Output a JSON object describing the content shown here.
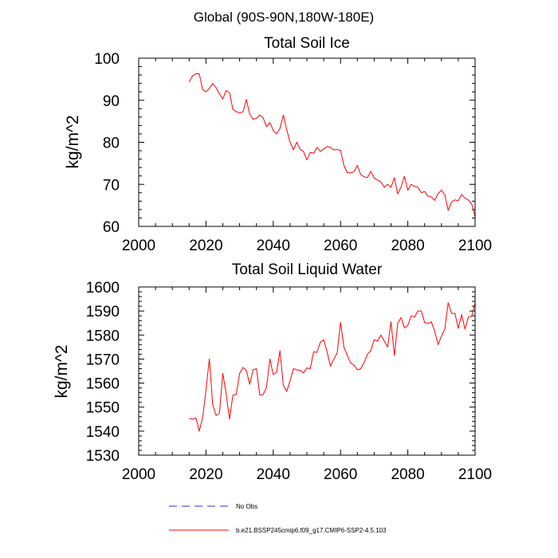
{
  "figure": {
    "supertitle": "Global (90S-90N,180W-180E)"
  },
  "legend": {
    "entries": [
      {
        "label": "No Obs",
        "color": "#2b2bd6",
        "style": "dashed"
      },
      {
        "label": "b.e21.BSSP245cmip6.f09_g17.CMIP6-SSP2-4.5.103",
        "color": "#ff0000",
        "style": "solid"
      }
    ]
  },
  "chart_data": [
    {
      "type": "line",
      "title": "Total Soil Ice",
      "xlabel": "",
      "ylabel": "kg/m^2",
      "xlim": [
        2000,
        2100
      ],
      "ylim": [
        60,
        100
      ],
      "xticks": [
        2000,
        2020,
        2040,
        2060,
        2080,
        2100
      ],
      "yticks": [
        60,
        70,
        80,
        90,
        100
      ],
      "series": [
        {
          "name": "b.e21.BSSP245cmip6.f09_g17.CMIP6-SSP2-4.5.103",
          "color": "#ff0000",
          "x": [
            2015,
            2016,
            2017,
            2018,
            2019,
            2020,
            2021,
            2022,
            2023,
            2024,
            2025,
            2026,
            2027,
            2028,
            2029,
            2030,
            2031,
            2032,
            2033,
            2034,
            2035,
            2036,
            2037,
            2038,
            2039,
            2040,
            2041,
            2042,
            2043,
            2044,
            2045,
            2046,
            2047,
            2048,
            2049,
            2050,
            2051,
            2052,
            2053,
            2054,
            2055,
            2056,
            2057,
            2058,
            2059,
            2060,
            2061,
            2062,
            2063,
            2064,
            2065,
            2066,
            2067,
            2068,
            2069,
            2070,
            2071,
            2072,
            2073,
            2074,
            2075,
            2076,
            2077,
            2078,
            2079,
            2080,
            2081,
            2082,
            2083,
            2084,
            2085,
            2086,
            2087,
            2088,
            2089,
            2090,
            2091,
            2092,
            2093,
            2094,
            2095,
            2096,
            2097,
            2098,
            2099,
            2100
          ],
          "y": [
            94.3,
            95.8,
            96.3,
            96.3,
            92.5,
            92.0,
            92.8,
            94.0,
            93.0,
            91.5,
            90.3,
            92.3,
            91.8,
            87.8,
            87.3,
            87.0,
            87.2,
            90.2,
            86.7,
            85.5,
            85.7,
            86.5,
            85.8,
            83.7,
            84.7,
            82.8,
            82.0,
            83.3,
            86.5,
            83.0,
            80.0,
            78.2,
            80.0,
            78.3,
            77.8,
            75.8,
            77.6,
            77.4,
            78.8,
            77.8,
            78.4,
            79.0,
            78.8,
            78.2,
            78.3,
            78.1,
            74.5,
            72.8,
            72.7,
            73.0,
            74.5,
            72.3,
            71.8,
            71.6,
            73.1,
            71.5,
            71.0,
            70.6,
            69.3,
            70.0,
            69.3,
            71.6,
            67.7,
            69.4,
            71.9,
            68.6,
            70.0,
            69.5,
            69.3,
            68.0,
            68.3,
            67.2,
            67.0,
            66.2,
            67.8,
            68.6,
            67.5,
            63.8,
            65.8,
            66.3,
            66.1,
            67.6,
            66.7,
            66.3,
            65.3,
            62.3
          ]
        }
      ]
    },
    {
      "type": "line",
      "title": "Total Soil Liquid Water",
      "xlabel": "",
      "ylabel": "kg/m^2",
      "xlim": [
        2000,
        2100
      ],
      "ylim": [
        1530,
        1600
      ],
      "xticks": [
        2000,
        2020,
        2040,
        2060,
        2080,
        2100
      ],
      "yticks": [
        1530,
        1540,
        1550,
        1560,
        1570,
        1580,
        1590,
        1600
      ],
      "series": [
        {
          "name": "b.e21.BSSP245cmip6.f09_g17.CMIP6-SSP2-4.5.103",
          "color": "#ff0000",
          "x": [
            2015,
            2016,
            2017,
            2018,
            2019,
            2020,
            2021,
            2022,
            2023,
            2024,
            2025,
            2026,
            2027,
            2028,
            2029,
            2030,
            2031,
            2032,
            2033,
            2034,
            2035,
            2036,
            2037,
            2038,
            2039,
            2040,
            2041,
            2042,
            2043,
            2044,
            2045,
            2046,
            2047,
            2048,
            2049,
            2050,
            2051,
            2052,
            2053,
            2054,
            2055,
            2056,
            2057,
            2058,
            2059,
            2060,
            2061,
            2062,
            2063,
            2064,
            2065,
            2066,
            2067,
            2068,
            2069,
            2070,
            2071,
            2072,
            2073,
            2074,
            2075,
            2076,
            2077,
            2078,
            2079,
            2080,
            2081,
            2082,
            2083,
            2084,
            2085,
            2086,
            2087,
            2088,
            2089,
            2090,
            2091,
            2092,
            2093,
            2094,
            2095,
            2096,
            2097,
            2098,
            2099,
            2100
          ],
          "y": [
            1545.3,
            1545.0,
            1545.5,
            1540.0,
            1545.5,
            1557.0,
            1570.0,
            1551.0,
            1546.5,
            1547.5,
            1564.0,
            1555.5,
            1545.0,
            1555.0,
            1555.2,
            1564.0,
            1566.5,
            1565.3,
            1559.5,
            1565.5,
            1566.0,
            1555.0,
            1555.2,
            1558.3,
            1570.0,
            1563.5,
            1564.5,
            1573.5,
            1559.0,
            1556.5,
            1561.0,
            1566.0,
            1565.5,
            1565.3,
            1564.2,
            1566.3,
            1566.0,
            1573.0,
            1572.8,
            1577.0,
            1578.0,
            1573.0,
            1567.0,
            1570.0,
            1572.5,
            1585.3,
            1575.0,
            1571.5,
            1568.3,
            1567.5,
            1565.5,
            1566.0,
            1568.5,
            1572.0,
            1573.5,
            1578.0,
            1577.5,
            1580.0,
            1577.5,
            1575.0,
            1585.5,
            1571.5,
            1584.8,
            1587.3,
            1583.0,
            1584.0,
            1588.0,
            1587.5,
            1590.0,
            1590.0,
            1585.2,
            1584.8,
            1585.5,
            1581.5,
            1576.0,
            1579.5,
            1582.5,
            1593.5,
            1589.0,
            1589.0,
            1582.8,
            1588.5,
            1582.5,
            1587.5,
            1587.8,
            1593.5
          ]
        }
      ]
    }
  ]
}
